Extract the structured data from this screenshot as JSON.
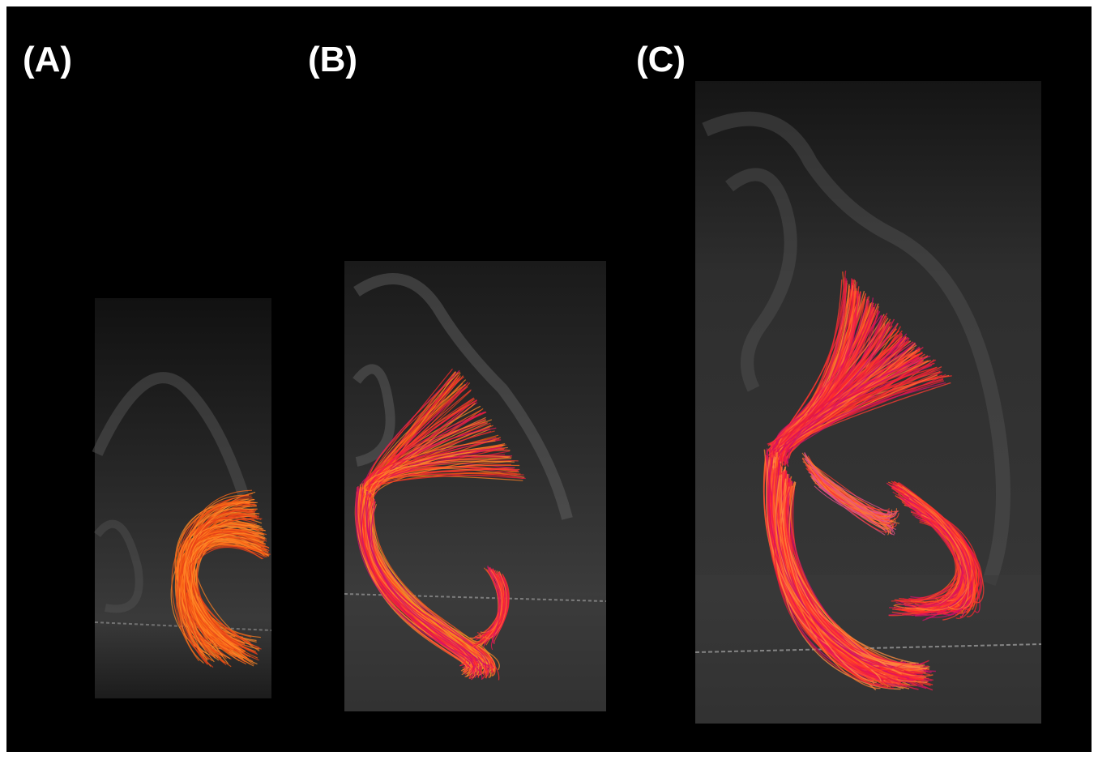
{
  "panels": [
    {
      "label": "(A)"
    },
    {
      "label": "(B)"
    },
    {
      "label": "(C)"
    }
  ]
}
